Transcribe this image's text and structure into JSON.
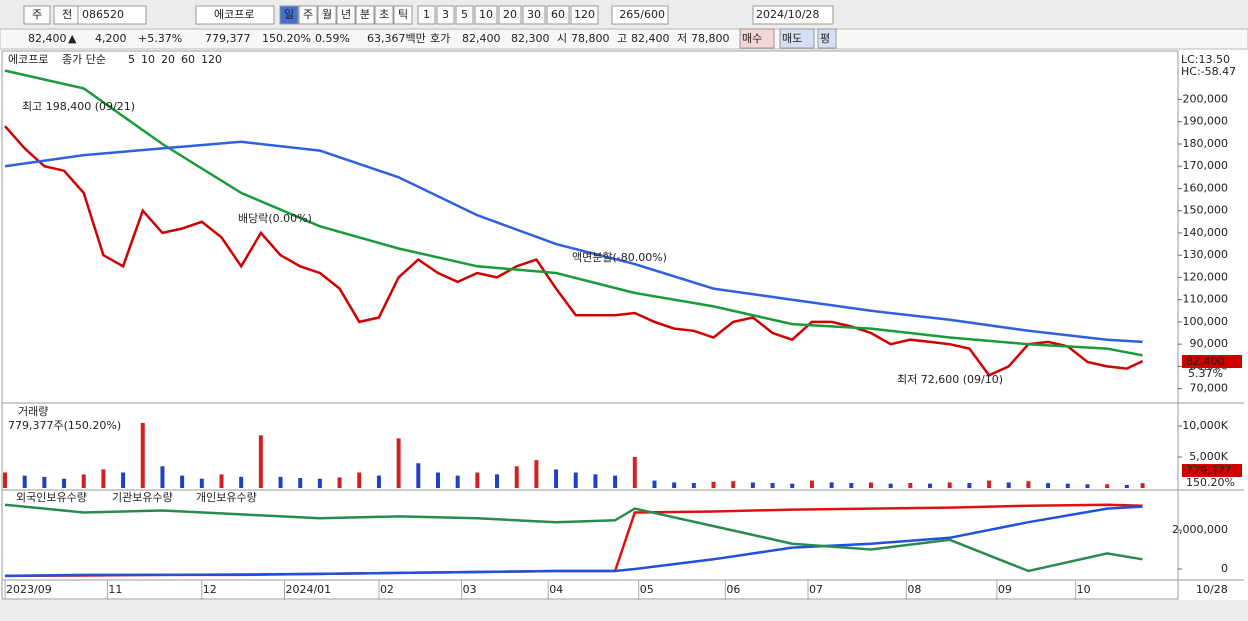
{
  "toolbar": {
    "items": [
      "주",
      "전"
    ],
    "code": "086520",
    "name": "에코프로",
    "periods": [
      "일",
      "주",
      "월",
      "년",
      "분",
      "초",
      "틱"
    ],
    "counts": [
      "1",
      "3",
      "5",
      "10",
      "20",
      "30",
      "60",
      "120"
    ],
    "range": "265/600",
    "date": "2024/10/28"
  },
  "quote": [
    "82,400",
    "▲",
    "4,200",
    "+5.37%",
    "779,377",
    "150.20%",
    "0.59%",
    "63,367백만",
    "호가",
    "82,400",
    "82,300",
    "시",
    "78,800",
    "고",
    "82,400",
    "저",
    "78,800",
    "매수",
    "매도",
    "평"
  ],
  "chart_data": [
    {
      "type": "line",
      "panel": "price",
      "legend": [
        "에코프로",
        "종가 단순",
        "5",
        "10",
        "20",
        "60",
        "120"
      ],
      "legend_colors": [
        "#333333",
        "#c00000",
        "#e00000",
        "#ff8c00",
        "#e6d200",
        "#1a9a3a",
        "#3060e0"
      ],
      "xlim": [
        0,
        298
      ],
      "ylim": [
        64000,
        220000
      ],
      "yticks": [
        {
          "value": 70000,
          "label": "70,000"
        },
        {
          "value": 80000,
          "label": "80,000"
        },
        {
          "value": 90000,
          "label": "90,000"
        },
        {
          "value": 100000,
          "label": "100,000"
        },
        {
          "value": 110000,
          "label": "110,000"
        },
        {
          "value": 120000,
          "label": "120,000"
        },
        {
          "value": 130000,
          "label": "130,000"
        },
        {
          "value": 140000,
          "label": "140,000"
        },
        {
          "value": 150000,
          "label": "150,000"
        },
        {
          "value": 160000,
          "label": "160,000"
        },
        {
          "value": 170000,
          "label": "170,000"
        },
        {
          "value": 180000,
          "label": "180,000"
        },
        {
          "value": 190000,
          "label": "190,000"
        },
        {
          "value": 200000,
          "label": "200,000"
        }
      ],
      "xticks": [
        {
          "value": 0,
          "label": "2023/09"
        },
        {
          "value": 26,
          "label": "11"
        },
        {
          "value": 50,
          "label": "12"
        },
        {
          "value": 71,
          "label": "2024/01"
        },
        {
          "value": 95,
          "label": "02"
        },
        {
          "value": 116,
          "label": "03"
        },
        {
          "value": 138,
          "label": "04"
        },
        {
          "value": 161,
          "label": "05"
        },
        {
          "value": 183,
          "label": "06"
        },
        {
          "value": 204,
          "label": "07"
        },
        {
          "value": 229,
          "label": "08"
        },
        {
          "value": 252,
          "label": "09"
        },
        {
          "value": 272,
          "label": "10"
        }
      ],
      "date_end": "10/28",
      "series": [
        {
          "name": "종가",
          "color": "#d00000",
          "x": [
            0,
            5,
            10,
            15,
            20,
            25,
            30,
            35,
            40,
            45,
            50,
            55,
            60,
            65,
            70,
            75,
            80,
            85,
            90,
            95,
            100,
            105,
            110,
            115,
            120,
            125,
            130,
            135,
            140,
            145,
            150,
            155,
            160,
            165,
            170,
            175,
            180,
            185,
            190,
            195,
            200,
            205,
            210,
            215,
            220,
            225,
            230,
            235,
            240,
            245,
            250,
            255,
            260,
            265,
            270,
            275,
            280,
            285,
            289
          ],
          "values": [
            188000,
            178000,
            170000,
            168000,
            158000,
            130000,
            125000,
            150000,
            140000,
            142000,
            145000,
            138000,
            125000,
            140000,
            130000,
            125000,
            122000,
            115000,
            100000,
            102000,
            120000,
            128000,
            122000,
            118000,
            122000,
            120000,
            125000,
            128000,
            115000,
            103000,
            103000,
            103000,
            104000,
            100000,
            97000,
            96000,
            93000,
            100000,
            102000,
            95000,
            92000,
            100000,
            100000,
            98000,
            95000,
            90000,
            92000,
            91000,
            90000,
            88000,
            76000,
            80000,
            90000,
            91000,
            89000,
            82000,
            80000,
            79000,
            82400
          ]
        },
        {
          "name": "60",
          "color": "#1a9a3a",
          "x": [
            0,
            20,
            40,
            60,
            80,
            100,
            120,
            140,
            160,
            180,
            200,
            220,
            240,
            260,
            280,
            289
          ],
          "values": [
            213000,
            205000,
            180000,
            158000,
            143000,
            133000,
            125000,
            122000,
            113000,
            107000,
            99000,
            97000,
            93000,
            90000,
            88000,
            85000
          ]
        },
        {
          "name": "120",
          "color": "#3060e0",
          "x": [
            0,
            20,
            40,
            60,
            80,
            100,
            120,
            140,
            160,
            180,
            200,
            220,
            240,
            260,
            280,
            289
          ],
          "values": [
            170000,
            175000,
            178000,
            181000,
            177000,
            165000,
            148000,
            135000,
            126000,
            115000,
            110000,
            105000,
            101000,
            96000,
            92000,
            91000
          ]
        }
      ],
      "annotations": [
        "최고 198,400 (09/21)",
        "배당락(0.00%)",
        "액면분할(-80.00%)",
        "최저 72,600 (09/10)"
      ],
      "side_labels": [
        "LC:13.50",
        "HC:-58.47",
        "82,400",
        "5.37%"
      ]
    },
    {
      "type": "bar",
      "panel": "volume",
      "title": "거래량",
      "subtitle": "779,377주(150.20%)",
      "side_labels": [
        "779,377",
        "150.20%"
      ],
      "xlim": [
        0,
        298
      ],
      "ylim": [
        0,
        13400000
      ],
      "yticks": [
        {
          "value": 5000000,
          "label": "5,000K"
        },
        {
          "value": 10000000,
          "label": "10,000K"
        }
      ],
      "up_color": "#d02020",
      "down_color": "#2040c0",
      "x": [
        0,
        5,
        10,
        15,
        20,
        25,
        30,
        35,
        40,
        45,
        50,
        55,
        60,
        65,
        70,
        75,
        80,
        85,
        90,
        95,
        100,
        105,
        110,
        115,
        120,
        125,
        130,
        135,
        140,
        145,
        150,
        155,
        160,
        165,
        170,
        175,
        180,
        185,
        190,
        195,
        200,
        205,
        210,
        215,
        220,
        225,
        230,
        235,
        240,
        245,
        250,
        255,
        260,
        265,
        270,
        275,
        280,
        285,
        289
      ],
      "values": [
        2500000,
        2000000,
        1800000,
        1500000,
        2200000,
        3000000,
        2500000,
        10500000,
        3500000,
        2000000,
        1500000,
        2200000,
        1800000,
        8500000,
        1800000,
        1600000,
        1500000,
        1700000,
        2500000,
        2000000,
        8000000,
        4000000,
        2500000,
        2000000,
        2500000,
        2200000,
        3500000,
        4500000,
        3000000,
        2500000,
        2200000,
        2000000,
        5000000,
        1200000,
        900000,
        800000,
        1000000,
        1100000,
        900000,
        800000,
        700000,
        1200000,
        900000,
        800000,
        900000,
        700000,
        800000,
        700000,
        900000,
        800000,
        1200000,
        900000,
        1100000,
        800000,
        700000,
        600000,
        600000,
        500000,
        779377
      ]
    },
    {
      "type": "line",
      "panel": "holdings",
      "xlim": [
        0,
        298
      ],
      "ylim": [
        -460000,
        3950000
      ],
      "yticks": [
        0,
        {
          "value": 2000000,
          "label": "2,000,000"
        }
      ],
      "series": [
        {
          "name": "외국인보유수량",
          "color": "#e01010",
          "x": [
            0,
            20,
            40,
            60,
            80,
            100,
            120,
            140,
            155,
            160,
            180,
            200,
            220,
            240,
            260,
            280,
            289
          ],
          "values": [
            -350000,
            -330000,
            -300000,
            -300000,
            -250000,
            -200000,
            -150000,
            -100000,
            -100000,
            2900000,
            2950000,
            3050000,
            3100000,
            3150000,
            3250000,
            3300000,
            3250000
          ]
        },
        {
          "name": "기관보유수량",
          "color": "#2050e0",
          "x": [
            0,
            20,
            40,
            60,
            80,
            100,
            120,
            140,
            155,
            160,
            180,
            200,
            220,
            240,
            260,
            280,
            289
          ],
          "values": [
            -350000,
            -300000,
            -300000,
            -280000,
            -250000,
            -200000,
            -150000,
            -100000,
            -100000,
            0,
            500000,
            1100000,
            1300000,
            1600000,
            2400000,
            3100000,
            3200000
          ]
        },
        {
          "name": "개인보유수량",
          "color": "#2a8a50",
          "x": [
            0,
            20,
            40,
            60,
            80,
            100,
            120,
            140,
            155,
            160,
            180,
            200,
            220,
            240,
            260,
            280,
            289
          ],
          "values": [
            3300000,
            2900000,
            3000000,
            2800000,
            2600000,
            2700000,
            2600000,
            2400000,
            2500000,
            3100000,
            2200000,
            1300000,
            1000000,
            1500000,
            -100000,
            800000,
            500000
          ]
        }
      ]
    }
  ]
}
